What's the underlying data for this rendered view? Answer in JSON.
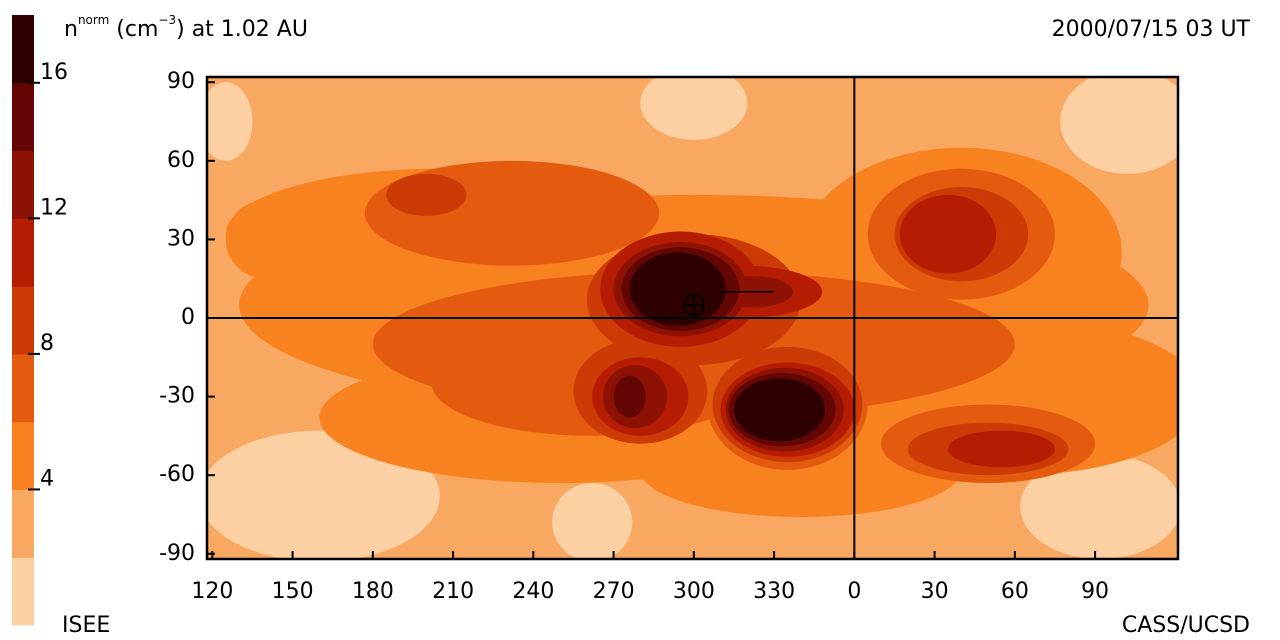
{
  "chart_data": {
    "type": "contour",
    "title": [
      "n",
      "norm",
      " (cm",
      "−3",
      ") at 1.02 AU"
    ],
    "date": "2000/07/15 03 UT",
    "source_left": "ISEE",
    "source_right": "CASS/UCSD",
    "xlim": [
      118,
      481
    ],
    "ylim": [
      -92,
      92
    ],
    "xticks": [
      120,
      150,
      180,
      210,
      240,
      270,
      300,
      330,
      {
        "value": 360,
        "label": "0"
      },
      {
        "value": 390,
        "label": "30"
      },
      {
        "value": 420,
        "label": "60"
      },
      {
        "value": 450,
        "label": "90"
      }
    ],
    "yticks": [
      90,
      60,
      30,
      0,
      -30,
      -60,
      -90
    ],
    "levels": [
      0,
      2,
      4,
      6,
      8,
      10,
      12,
      14,
      16,
      18
    ],
    "colors": [
      "#fdd0a4",
      "#f9a862",
      "#f8821f",
      "#e45b10",
      "#cc3a05",
      "#b51c02",
      "#8e1204",
      "#640603",
      "#2e0000"
    ],
    "colorbar_ticks": [
      4,
      8,
      12,
      16
    ]
  }
}
